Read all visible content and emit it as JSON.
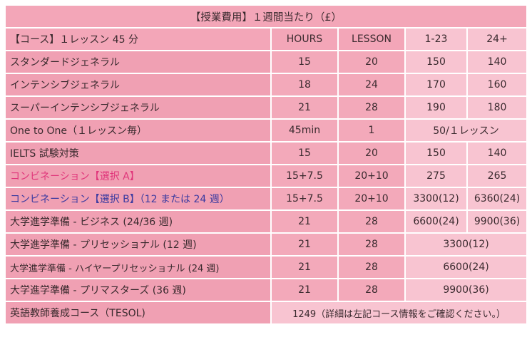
{
  "table": {
    "title": "【授業費用】１週間当たり（£）",
    "header": {
      "course": "【コース】１レッスン 45 分",
      "hours": "HOURS",
      "lesson": "LESSON",
      "price_a": "1-23",
      "price_b": "24+"
    },
    "rows": [
      {
        "name": "スタンダードジェネラル",
        "hours": "15",
        "lesson": "20",
        "price_a": "150",
        "price_b": "140"
      },
      {
        "name": "インテンシブジェネラル",
        "hours": "18",
        "lesson": "24",
        "price_a": "170",
        "price_b": "160"
      },
      {
        "name": "スーパーインテンシブジェネラル",
        "hours": "21",
        "lesson": "28",
        "price_a": "190",
        "price_b": "180"
      },
      {
        "name": "One to One（１レッスン毎）",
        "hours": "45min",
        "lesson": "1",
        "price": "50/１レッスン"
      },
      {
        "name": "IELTS 試験対策",
        "hours": "15",
        "lesson": "20",
        "price_a": "150",
        "price_b": "140"
      },
      {
        "name": "コンビネーション【選択 A】",
        "hours": "15+7.5",
        "lesson": "20+10",
        "price_a": "275",
        "price_b": "265"
      },
      {
        "name": "コンビネーション【選択 B】（12 または 24 週）",
        "hours": "15+7.5",
        "lesson": "20+10",
        "price_a": "3300(12)",
        "price_b": "6360(24)"
      },
      {
        "name": "大学進学準備 - ビジネス (24/36 週)",
        "hours": "21",
        "lesson": "28",
        "price_a": "6600(24)",
        "price_b": "9900(36)"
      },
      {
        "name": "大学進学準備 - プリセッショナル (12 週)",
        "hours": "21",
        "lesson": "28",
        "price": "3300(12)"
      },
      {
        "name": "大学進学準備 - ハイヤープリセッショナル (24 週)",
        "hours": "21",
        "lesson": "28",
        "price": "6600(24)"
      },
      {
        "name": "大学進学準備 - プリマスターズ (36 週)",
        "hours": "21",
        "lesson": "28",
        "price": "9900(36)"
      },
      {
        "name": "英語教師養成コース（TESOL)",
        "price": "1249（詳細は左記コース情報をご確認ください。）"
      }
    ]
  },
  "colors": {
    "header_bg": "#f3a6b8",
    "name_bg": "#f0a0b3",
    "price_bg": "#f8c4d1",
    "accent_pink": "#e0357a",
    "accent_blue": "#3a3aa0"
  }
}
